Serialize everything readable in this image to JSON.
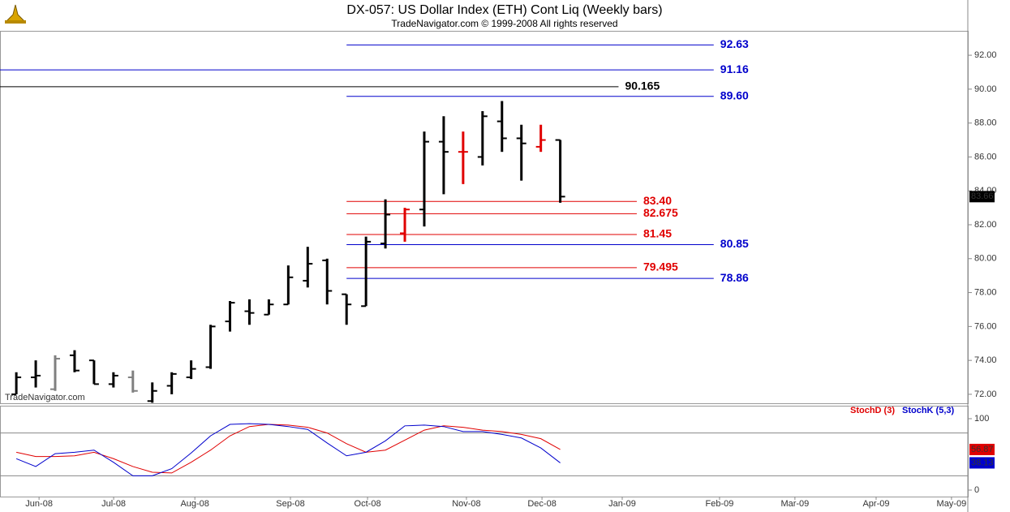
{
  "chart_data": [
    {
      "type": "ohlc",
      "title": "DX-057:  US Dollar Index (ETH) Cont Liq  (Weekly bars)",
      "subtitle": "TradeNavigator.com © 1999-2008 All rights reserved",
      "watermark": "TradeNavigator.com",
      "x": [
        0,
        1,
        2,
        3,
        4,
        5,
        6,
        7,
        8,
        9,
        10,
        11,
        12,
        13,
        14,
        15,
        16,
        17,
        18,
        19,
        20,
        21,
        22,
        23,
        24,
        25,
        26,
        27,
        28
      ],
      "open": [
        72.0,
        73.0,
        72.3,
        74.3,
        74.0,
        72.6,
        73.0,
        71.6,
        72.5,
        73.0,
        73.6,
        76.3,
        76.9,
        76.7,
        77.3,
        78.7,
        79.9,
        77.9,
        77.2,
        80.9,
        81.5,
        82.9,
        86.9,
        86.3,
        86.0,
        88.1,
        87.1,
        86.6,
        87.0
      ],
      "high": [
        73.3,
        74.0,
        74.3,
        74.6,
        74.0,
        73.3,
        73.4,
        72.7,
        73.3,
        74.0,
        76.1,
        77.5,
        77.6,
        77.6,
        79.6,
        80.7,
        80.0,
        77.9,
        81.3,
        83.5,
        83.0,
        87.5,
        88.4,
        87.5,
        88.7,
        89.3,
        87.9,
        87.9,
        87.0
      ],
      "low": [
        72.0,
        72.4,
        72.2,
        73.3,
        72.6,
        72.4,
        72.1,
        71.5,
        72.0,
        72.9,
        73.5,
        75.7,
        76.1,
        76.7,
        77.3,
        78.3,
        77.3,
        76.1,
        77.2,
        80.6,
        81.0,
        81.9,
        83.8,
        84.4,
        85.5,
        86.3,
        84.6,
        86.3,
        83.3
      ],
      "close": [
        73.0,
        73.1,
        74.1,
        73.4,
        72.6,
        73.1,
        72.2,
        72.2,
        73.2,
        73.5,
        76.0,
        77.4,
        76.8,
        77.3,
        78.9,
        79.7,
        78.1,
        77.3,
        81.0,
        82.6,
        82.9,
        86.9,
        86.3,
        86.3,
        88.4,
        87.1,
        86.8,
        87.0,
        83.66
      ],
      "colors": [
        "#000000",
        "#000000",
        "#808080",
        "#000000",
        "#000000",
        "#000000",
        "#808080",
        "#000000",
        "#000000",
        "#000000",
        "#000000",
        "#000000",
        "#000000",
        "#000000",
        "#000000",
        "#000000",
        "#000000",
        "#000000",
        "#000000",
        "#000000",
        "#e00000",
        "#000000",
        "#000000",
        "#e00000",
        "#000000",
        "#000000",
        "#000000",
        "#e00000",
        "#000000"
      ],
      "xlim": [
        -0.84,
        48.98
      ],
      "xticks": [
        {
          "value": 1.17,
          "label": "Jun-08"
        },
        {
          "value": 5.01,
          "label": "Jul-08"
        },
        {
          "value": 9.19,
          "label": "Aug-08"
        },
        {
          "value": 14.11,
          "label": "Sep-08"
        },
        {
          "value": 18.08,
          "label": "Oct-08"
        },
        {
          "value": 23.17,
          "label": "Nov-08"
        },
        {
          "value": 27.06,
          "label": "Dec-08"
        },
        {
          "value": 31.19,
          "label": "Jan-09"
        },
        {
          "value": 36.2,
          "label": "Feb-09"
        },
        {
          "value": 40.08,
          "label": "Mar-09"
        },
        {
          "value": 44.26,
          "label": "Apr-09"
        },
        {
          "value": 48.14,
          "label": "May-09"
        }
      ],
      "ylim": [
        71.47,
        93.44
      ],
      "yticks": [
        {
          "value": 72,
          "label": "72.00"
        },
        {
          "value": 74,
          "label": "74.00"
        },
        {
          "value": 76,
          "label": "76.00"
        },
        {
          "value": 78,
          "label": "78.00"
        },
        {
          "value": 80,
          "label": "80.00"
        },
        {
          "value": 82,
          "label": "82.00"
        },
        {
          "value": 84,
          "label": "84.00"
        },
        {
          "value": 86,
          "label": "86.00"
        },
        {
          "value": 88,
          "label": "88.00"
        },
        {
          "value": 90,
          "label": "90.00"
        },
        {
          "value": 92,
          "label": "92.00"
        }
      ],
      "levels": [
        {
          "value": 92.63,
          "color": "#0000cc",
          "start": 17,
          "end": 35.9
        },
        {
          "value": 91.16,
          "color": "#0000cc",
          "start": -0.84,
          "end": 35.9
        },
        {
          "value": 90.165,
          "color": "#000000",
          "start": -0.84,
          "end": 31.0
        },
        {
          "value": 89.6,
          "label": "89.60",
          "color": "#0000cc",
          "start": 17,
          "end": 35.9
        },
        {
          "value": 83.4,
          "label": "83.40",
          "color": "#e00000",
          "start": 17,
          "end": 31.94
        },
        {
          "value": 82.675,
          "color": "#e00000",
          "start": 17,
          "end": 31.94
        },
        {
          "value": 81.45,
          "color": "#e00000",
          "start": 17,
          "end": 31.94
        },
        {
          "value": 80.85,
          "color": "#0000cc",
          "start": 17,
          "end": 35.9
        },
        {
          "value": 79.495,
          "color": "#e00000",
          "start": 17,
          "end": 31.94
        },
        {
          "value": 78.86,
          "color": "#0000cc",
          "start": 17,
          "end": 35.9
        }
      ]
    },
    {
      "type": "line",
      "series": [
        {
          "name": "StochD (3)",
          "color": "#e00000",
          "values": [
            53,
            47,
            47,
            48,
            53,
            44,
            33,
            25,
            24,
            39,
            56,
            76,
            89,
            92,
            91,
            88,
            80,
            65,
            53,
            56,
            70,
            84,
            90,
            88,
            84,
            82,
            78,
            72,
            56.87
          ]
        },
        {
          "name": "StochK (5,3)",
          "color": "#0000cc",
          "values": [
            44,
            33,
            51,
            53,
            56,
            39,
            20,
            20,
            30,
            52,
            76,
            92,
            93,
            92,
            89,
            85,
            66,
            48,
            53,
            69,
            90,
            91,
            89,
            82,
            82,
            78,
            73,
            59,
            38.13
          ]
        }
      ],
      "ylim": [
        -9.1,
        118.2
      ],
      "yticks": [
        0,
        100
      ],
      "ref_lines": [
        20,
        80
      ]
    }
  ]
}
